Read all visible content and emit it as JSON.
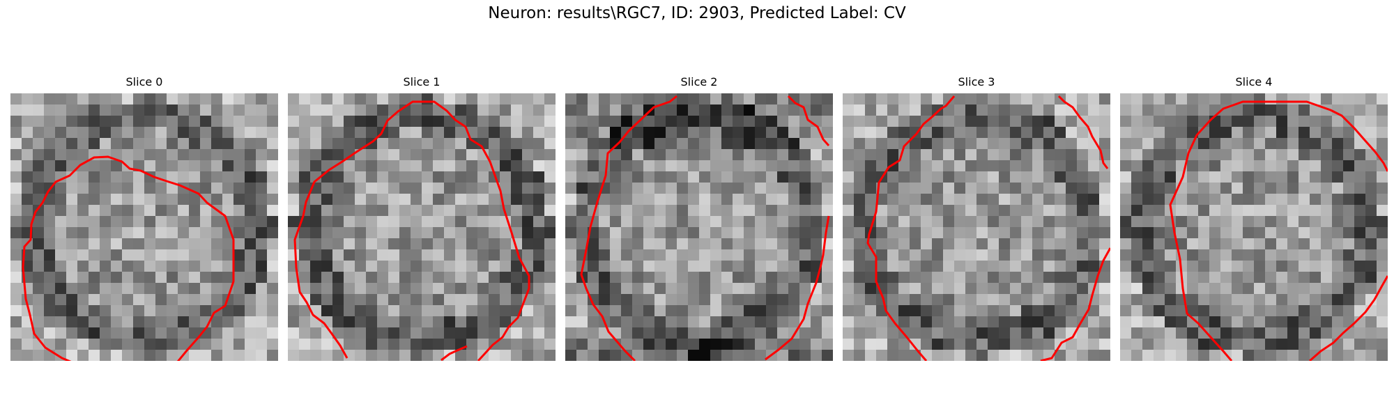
{
  "figure": {
    "title": "Neuron: results\\RGC7, ID: 2903, Predicted Label: CV"
  },
  "panels": [
    {
      "title": "Slice 0",
      "outline_color": "#ff0000"
    },
    {
      "title": "Slice 1",
      "outline_color": "#ff0000"
    },
    {
      "title": "Slice 2",
      "outline_color": "#ff0000"
    },
    {
      "title": "Slice 3",
      "outline_color": "#ff0000"
    },
    {
      "title": "Slice 4",
      "outline_color": "#ff0000"
    }
  ]
}
